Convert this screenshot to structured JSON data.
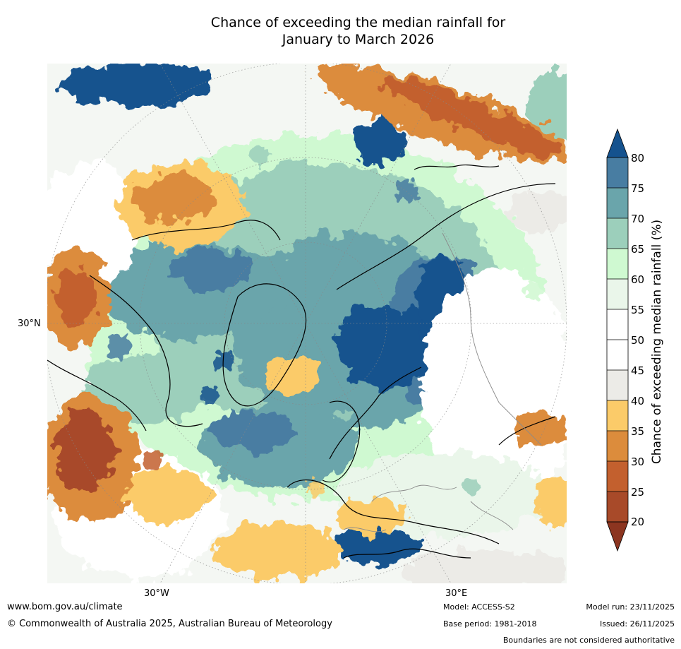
{
  "title_line1": "Chance of exceeding the median rainfall for",
  "title_line2": "January to March 2026",
  "map_labels": {
    "lat_30n": "30°N",
    "lon_30w": "30°W",
    "lon_30e": "30°E"
  },
  "colorbar": {
    "label": "Chance of exceeding median rainfall (%)",
    "ticks": [
      "80",
      "75",
      "70",
      "65",
      "60",
      "55",
      "50",
      "45",
      "40",
      "35",
      "30",
      "25",
      "20"
    ],
    "colors": {
      "above_80": "#15528e",
      "75_80": "#487da2",
      "70_75": "#6aa5ab",
      "65_70": "#9ccfbb",
      "60_65": "#cff9d1",
      "55_60": "#eaf6ea",
      "50_55": "#ffffff",
      "45_50": "#ffffff",
      "40_45": "#ecebe7",
      "35_40": "#fbcb69",
      "30_35": "#dc8c3c",
      "25_30": "#c3602e",
      "20_25": "#a84a29",
      "below_20": "#8c3520"
    }
  },
  "footer": {
    "website": "www.bom.gov.au/climate",
    "copyright": "© Commonwealth of Australia 2025, Australian Bureau of Meteorology",
    "model": "Model: ACCESS-S2",
    "base_period": "Base period: 1981-2018",
    "model_run": "Model run: 23/11/2025",
    "issued": "Issued: 26/11/2025",
    "disclaimer": "Boundaries are not considered authoritative"
  }
}
